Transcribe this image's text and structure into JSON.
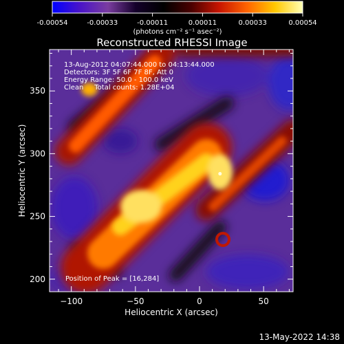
{
  "colorbar": {
    "tick_labels": [
      "-0.00054",
      "-0.00033",
      "-0.00011",
      "0.00011",
      "0.00033",
      "0.00054"
    ],
    "unit_label": "(photons cm⁻² s⁻¹ asec⁻²)",
    "range": [
      -0.00054,
      0.00054
    ],
    "colors": [
      "#0000ff",
      "#4a14c8",
      "#7a3ca0",
      "#14002a",
      "#000000",
      "#4a0000",
      "#c81400",
      "#ff6400",
      "#ffc800",
      "#ffffb4"
    ]
  },
  "chart_data": {
    "type": "heatmap",
    "title": "Reconstructed RHESSI Image",
    "xlabel": "Heliocentric X (arcsec)",
    "ylabel": "Heliocentric Y (arcsec)",
    "xlim": [
      -117,
      73
    ],
    "ylim": [
      190,
      383
    ],
    "xticks": [
      -100,
      -50,
      0,
      50
    ],
    "yticks": [
      200,
      250,
      300,
      350
    ],
    "annotations": [
      "13-Aug-2012 04:07:44.000 to 04:13:44.000",
      "Detectors: 3F 5F 6F 7F 8F, Att 0",
      "Energy Range: 50.0 - 100.0 keV",
      "Clean     Total counts: 1.28E+04"
    ],
    "peak_label": "Position of Peak = [16,284]",
    "peak_position": [
      16,
      284
    ],
    "features": [
      {
        "name": "main ridge",
        "from": [
          -85,
          205
        ],
        "to": [
          20,
          300
        ],
        "value": 0.00045
      },
      {
        "name": "upper ridge",
        "from": [
          -117,
          300
        ],
        "to": [
          -35,
          383
        ],
        "value": 0.00038
      },
      {
        "name": "right ridge",
        "from": [
          15,
          245
        ],
        "to": [
          73,
          303
        ],
        "value": 0.00022
      }
    ]
  },
  "timestamp": "13-May-2022 14:38"
}
